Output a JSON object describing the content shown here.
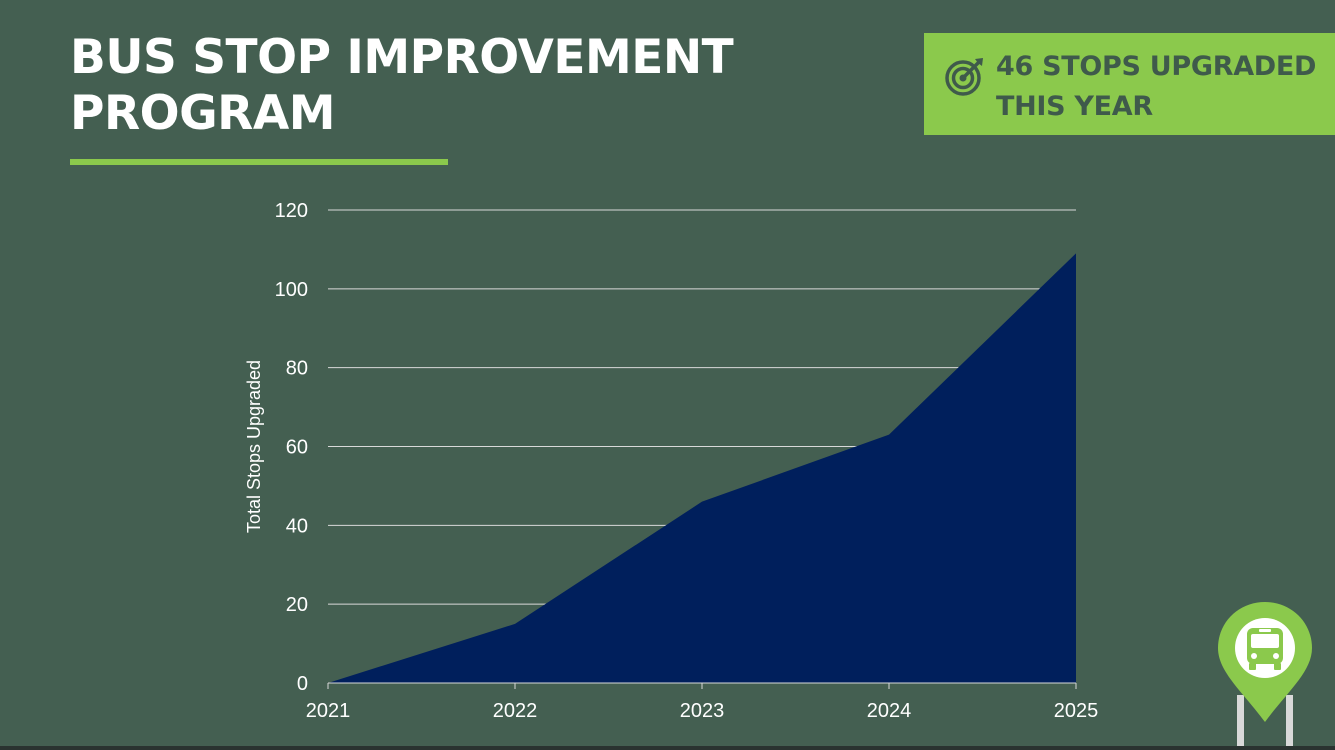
{
  "slide": {
    "title_lines": [
      "BUS STOP IMPROVEMENT",
      "PROGRAM"
    ],
    "badge_lines": [
      "46 STOPS UPGRADED",
      "THIS YEAR"
    ],
    "badge_icon": "target-icon",
    "corner_icon": "bus-stop-pin-icon"
  },
  "colors": {
    "background": "#445f51",
    "accent": "#8bc94c",
    "area_fill": "#001f5c",
    "text": "#ffffff"
  },
  "chart_data": {
    "type": "area",
    "x": [
      "2021",
      "2022",
      "2023",
      "2024",
      "2025"
    ],
    "series": [
      {
        "name": "Total Stops Upgraded",
        "values": [
          0,
          15,
          46,
          63,
          109
        ]
      }
    ],
    "xlabel": "",
    "ylabel": "Total Stops Upgraded",
    "ylim": [
      0,
      120
    ],
    "yticks": [
      0,
      20,
      40,
      60,
      80,
      100,
      120
    ],
    "grid": true
  }
}
